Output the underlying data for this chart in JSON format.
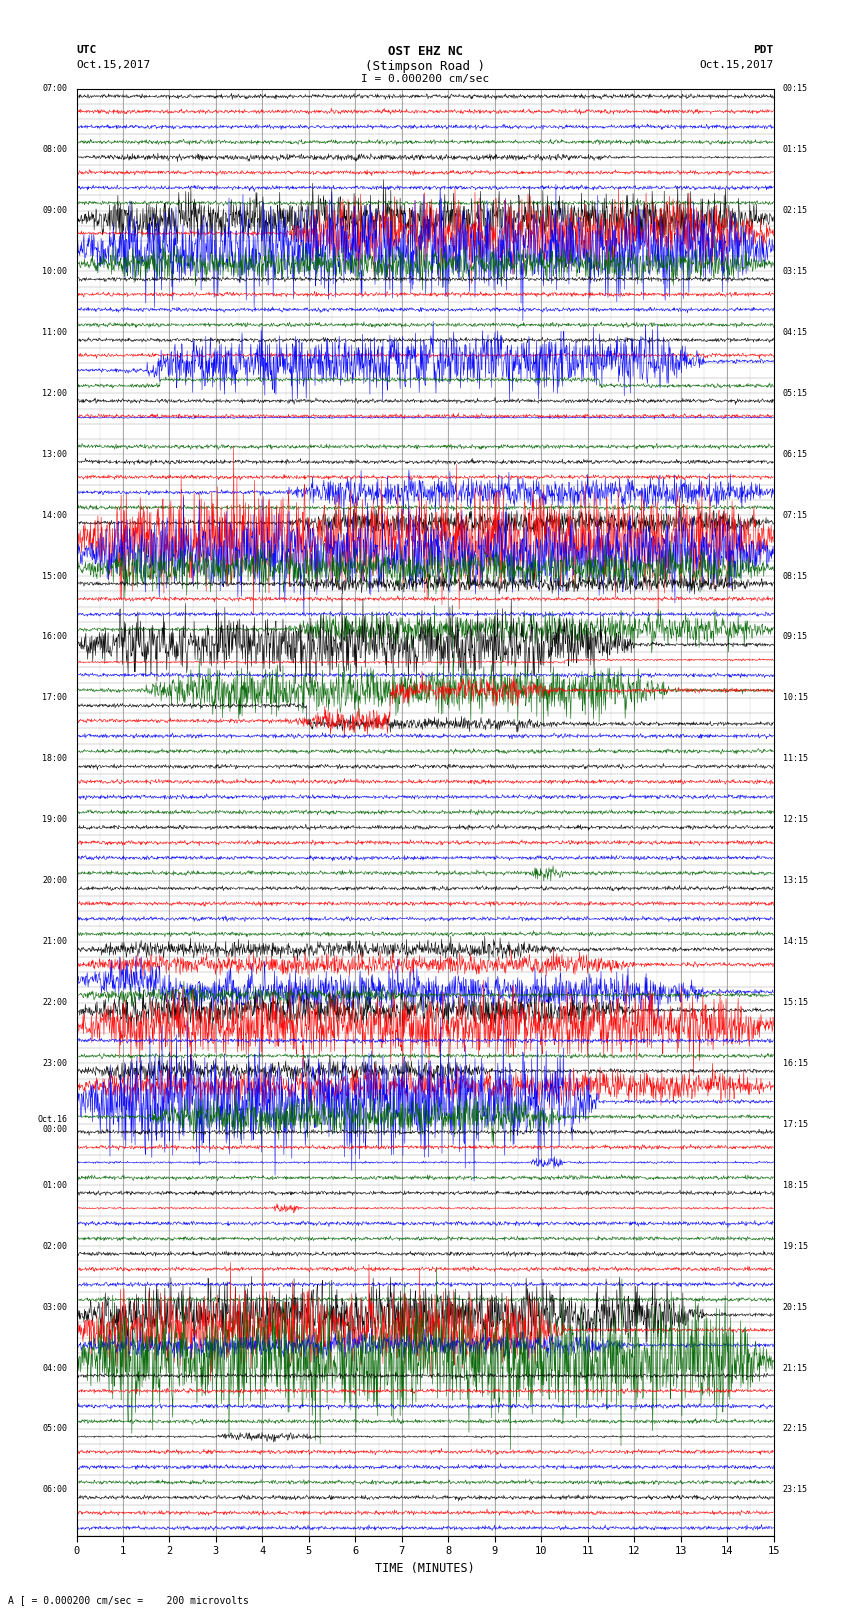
{
  "title_line1": "OST EHZ NC",
  "title_line2": "(Stimpson Road )",
  "title_line3": "I = 0.000200 cm/sec",
  "label_utc": "UTC",
  "label_utc_date": "Oct.15,2017",
  "label_pdt": "PDT",
  "label_pdt_date": "Oct.15,2017",
  "footer": "A [ = 0.000200 cm/sec =    200 microvolts",
  "xlabel": "TIME (MINUTES)",
  "bg_color": "#ffffff",
  "trace_colors": [
    "#000000",
    "#ff0000",
    "#0000ff",
    "#006400"
  ],
  "grid_color": "#888888",
  "utc_labels": [
    "07:00",
    "",
    "",
    "",
    "08:00",
    "",
    "",
    "",
    "09:00",
    "",
    "",
    "",
    "10:00",
    "",
    "",
    "",
    "11:00",
    "",
    "",
    "",
    "12:00",
    "",
    "",
    "",
    "13:00",
    "",
    "",
    "",
    "14:00",
    "",
    "",
    "",
    "15:00",
    "",
    "",
    "",
    "16:00",
    "",
    "",
    "",
    "17:00",
    "",
    "",
    "",
    "18:00",
    "",
    "",
    "",
    "19:00",
    "",
    "",
    "",
    "20:00",
    "",
    "",
    "",
    "21:00",
    "",
    "",
    "",
    "22:00",
    "",
    "",
    "",
    "23:00",
    "",
    "",
    "",
    "Oct.16\n00:00",
    "",
    "",
    "",
    "01:00",
    "",
    "",
    "",
    "02:00",
    "",
    "",
    "",
    "03:00",
    "",
    "",
    "",
    "04:00",
    "",
    "",
    "",
    "05:00",
    "",
    "",
    "",
    "06:00",
    "",
    ""
  ],
  "pdt_labels": [
    "00:15",
    "",
    "",
    "",
    "01:15",
    "",
    "",
    "",
    "02:15",
    "",
    "",
    "",
    "03:15",
    "",
    "",
    "",
    "04:15",
    "",
    "",
    "",
    "05:15",
    "",
    "",
    "",
    "06:15",
    "",
    "",
    "",
    "07:15",
    "",
    "",
    "",
    "08:15",
    "",
    "",
    "",
    "09:15",
    "",
    "",
    "",
    "10:15",
    "",
    "",
    "",
    "11:15",
    "",
    "",
    "",
    "12:15",
    "",
    "",
    "",
    "13:15",
    "",
    "",
    "",
    "14:15",
    "",
    "",
    "",
    "15:15",
    "",
    "",
    "",
    "16:15",
    "",
    "",
    "",
    "17:15",
    "",
    "",
    "",
    "18:15",
    "",
    "",
    "",
    "19:15",
    "",
    "",
    "",
    "20:15",
    "",
    "",
    "",
    "21:15",
    "",
    "",
    "",
    "22:15",
    "",
    "",
    "",
    "23:15",
    "",
    ""
  ],
  "num_rows": 95,
  "fig_width": 8.5,
  "fig_height": 16.13,
  "dpi": 100
}
